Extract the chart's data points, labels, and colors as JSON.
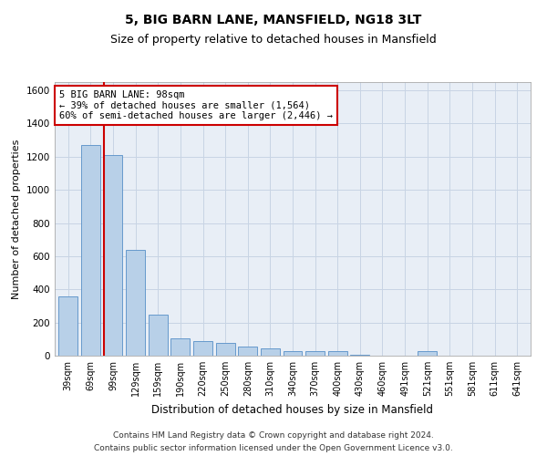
{
  "title": "5, BIG BARN LANE, MANSFIELD, NG18 3LT",
  "subtitle": "Size of property relative to detached houses in Mansfield",
  "xlabel": "Distribution of detached houses by size in Mansfield",
  "ylabel": "Number of detached properties",
  "categories": [
    "39sqm",
    "69sqm",
    "99sqm",
    "129sqm",
    "159sqm",
    "190sqm",
    "220sqm",
    "250sqm",
    "280sqm",
    "310sqm",
    "340sqm",
    "370sqm",
    "400sqm",
    "430sqm",
    "460sqm",
    "491sqm",
    "521sqm",
    "551sqm",
    "581sqm",
    "611sqm",
    "641sqm"
  ],
  "values": [
    360,
    1270,
    1210,
    640,
    250,
    107,
    90,
    75,
    55,
    45,
    30,
    30,
    28,
    7,
    0,
    0,
    27,
    0,
    0,
    0,
    0
  ],
  "bar_color": "#b8d0e8",
  "bar_edge_color": "#6699cc",
  "vline_x_index": 2,
  "annotation_line1": "5 BIG BARN LANE: 98sqm",
  "annotation_line2": "← 39% of detached houses are smaller (1,564)",
  "annotation_line3": "60% of semi-detached houses are larger (2,446) →",
  "annotation_box_color": "#ffffff",
  "annotation_box_edge": "#cc0000",
  "vline_color": "#cc0000",
  "ylim": [
    0,
    1650
  ],
  "yticks": [
    0,
    200,
    400,
    600,
    800,
    1000,
    1200,
    1400,
    1600
  ],
  "grid_color": "#c8d4e4",
  "background_color": "#e8eef6",
  "footer1": "Contains HM Land Registry data © Crown copyright and database right 2024.",
  "footer2": "Contains public sector information licensed under the Open Government Licence v3.0.",
  "title_fontsize": 10,
  "subtitle_fontsize": 9,
  "footer_fontsize": 6.5
}
